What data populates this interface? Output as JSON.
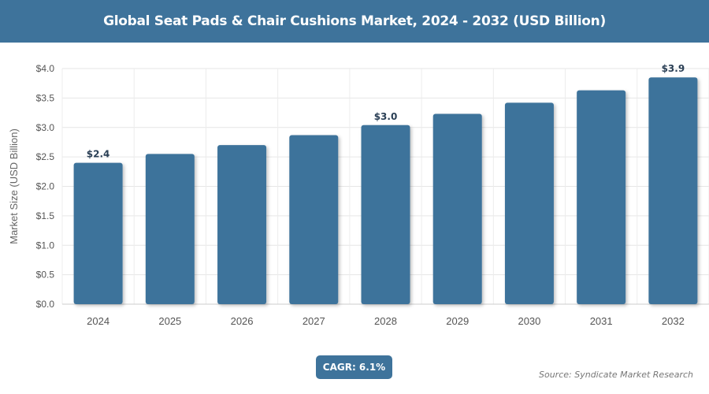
{
  "header": {
    "title": "Global Seat Pads & Chair Cushions Market, 2024 - 2032 (USD Billion)"
  },
  "chart_data": {
    "type": "bar",
    "title": "Global Seat Pads & Chair Cushions Market, 2024 - 2032 (USD Billion)",
    "xlabel": "",
    "ylabel": "Market Size (USD Billion)",
    "categories": [
      "2024",
      "2025",
      "2026",
      "2027",
      "2028",
      "2029",
      "2030",
      "2031",
      "2032"
    ],
    "values": [
      2.4,
      2.55,
      2.7,
      2.87,
      3.04,
      3.23,
      3.42,
      3.63,
      3.85
    ],
    "data_labels": {
      "0": "$2.4",
      "4": "$3.0",
      "8": "$3.9"
    },
    "ylim": [
      0,
      4
    ],
    "yticks": [
      "$0.0",
      "$0.5",
      "$1.0",
      "$1.5",
      "$2.0",
      "$2.5",
      "$3.0",
      "$3.5",
      "$4.0"
    ],
    "grid": true,
    "bar_color": "#3e739b"
  },
  "footer": {
    "cagr": "CAGR: 6.1%",
    "source": "Source: Syndicate Market Research"
  }
}
